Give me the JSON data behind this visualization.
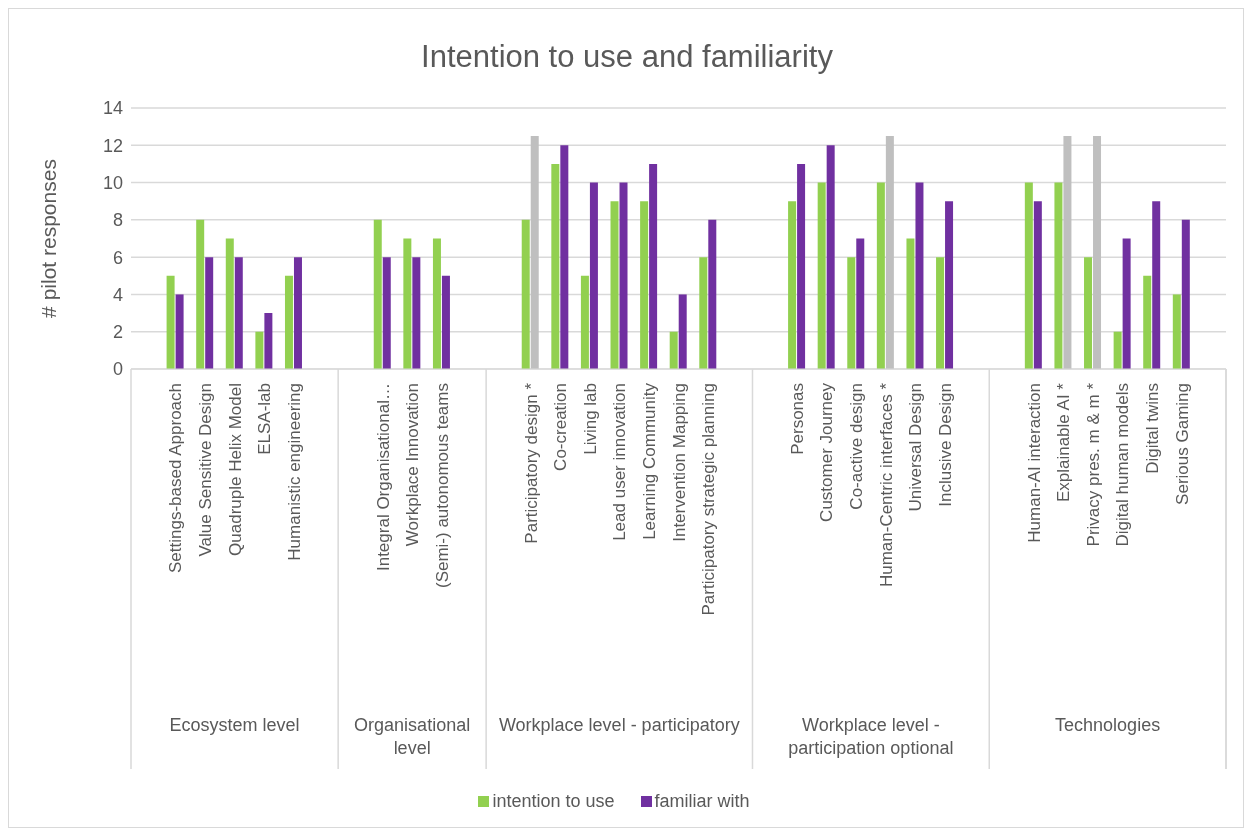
{
  "chart_data": {
    "type": "bar",
    "title": "Intention to use and familiarity",
    "ylabel": "# pilot responses",
    "categories": [
      null,
      "Settings-based Approach",
      "Value Sensitive Design",
      "Quadruple Helix Model",
      "ELSA-lab",
      "Humanistic engineering",
      null,
      null,
      "Integral Organisational…",
      "Workplace Innovation",
      "(Semi-) autonomous teams",
      null,
      null,
      "Participatory design *",
      "Co-creation",
      "Living lab",
      "Lead user innovation",
      "Learning Community",
      "Intervention Mapping",
      "Participatory strategic planning",
      null,
      null,
      "Personas",
      "Customer Journey",
      "Co-active design",
      "Human-Centric interfaces *",
      "Universal Design",
      "Inclusive Design",
      null,
      null,
      "Human-AI interaction",
      "Explainable AI *",
      "Privacy pres. m & m *",
      "Digital human models",
      "Digital twins",
      "Serious Gaming",
      null
    ],
    "series": [
      {
        "name": "intention to use",
        "color": "#92d050",
        "values": [
          null,
          5,
          8,
          7,
          2,
          5,
          null,
          null,
          8,
          7,
          7,
          null,
          null,
          8,
          11,
          5,
          9,
          9,
          2,
          6,
          null,
          null,
          9,
          10,
          6,
          10,
          7,
          6,
          null,
          null,
          10,
          10,
          6,
          2,
          5,
          4,
          null
        ]
      },
      {
        "name": "familiar with",
        "color": "#7030a0",
        "values": [
          null,
          4,
          6,
          6,
          3,
          6,
          null,
          null,
          6,
          6,
          5,
          null,
          null,
          12.5,
          12,
          10,
          10,
          11,
          4,
          8,
          null,
          null,
          11,
          12,
          7,
          12.5,
          10,
          9,
          null,
          null,
          9,
          12.5,
          12.5,
          7,
          9,
          8,
          null
        ],
        "colors": [
          null,
          "#7030a0",
          "#7030a0",
          "#7030a0",
          "#7030a0",
          "#7030a0",
          null,
          null,
          "#7030a0",
          "#7030a0",
          "#7030a0",
          null,
          null,
          "#bfbfbf",
          "#7030a0",
          "#7030a0",
          "#7030a0",
          "#7030a0",
          "#7030a0",
          "#7030a0",
          null,
          null,
          "#7030a0",
          "#7030a0",
          "#7030a0",
          "#bfbfbf",
          "#7030a0",
          "#7030a0",
          null,
          null,
          "#7030a0",
          "#bfbfbf",
          "#bfbfbf",
          "#7030a0",
          "#7030a0",
          "#7030a0",
          null
        ]
      }
    ],
    "ylim": [
      0,
      14
    ],
    "yticks": [
      0,
      2,
      4,
      6,
      8,
      10,
      12,
      14
    ],
    "grid": "y",
    "legend": "bottom",
    "annotations": [
      "Ecosystem level",
      "Organisational level",
      "Workplace level - participatory",
      "Workplace level - participation optional",
      "Technologies"
    ]
  }
}
